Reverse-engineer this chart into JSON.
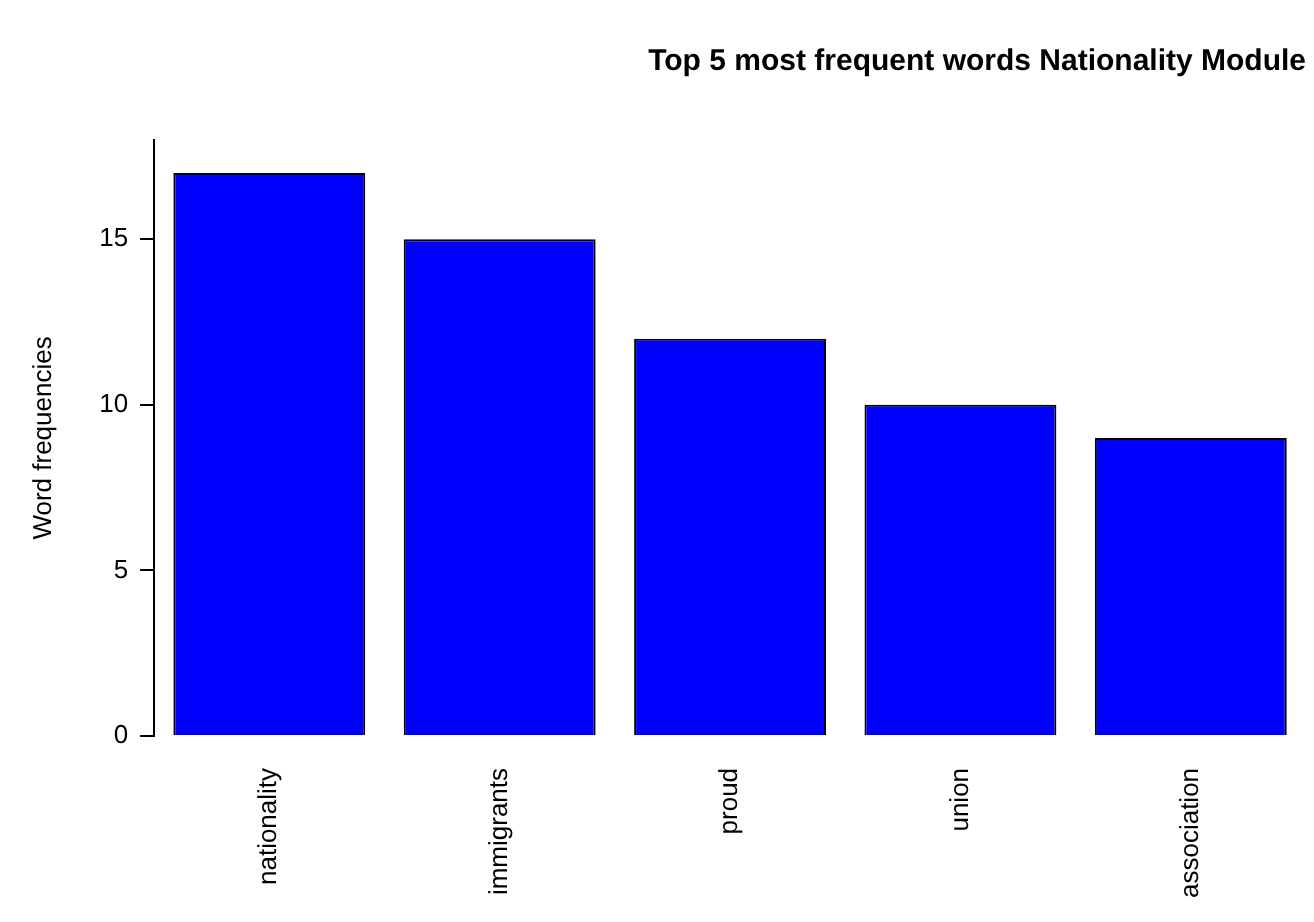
{
  "chart_data": {
    "type": "bar",
    "title": "Top 5 most frequent words Nationality Module",
    "ylabel": "Word frequencies",
    "categories": [
      "nationality",
      "immigrants",
      "proud",
      "union",
      "association"
    ],
    "values": [
      17,
      15,
      12,
      10,
      9
    ],
    "color": "#0000ff",
    "ylim": [
      0,
      18
    ],
    "yticks": [
      0,
      5,
      10,
      15
    ],
    "grid": false,
    "legend": false
  }
}
